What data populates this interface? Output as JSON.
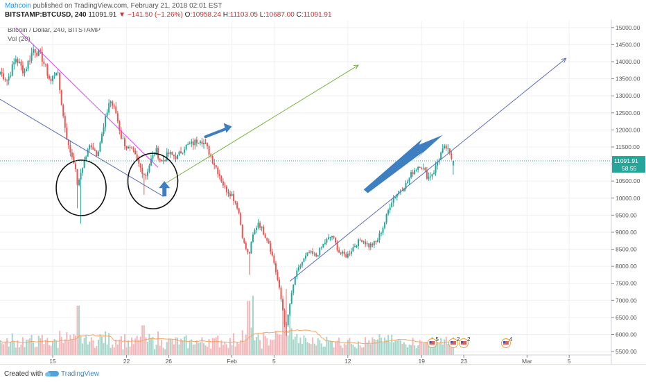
{
  "header": {
    "author": "Mahcoin",
    "published_text": "published on TradingView.com, February 21, 2018 02:01 EST",
    "symbol_line": "BITSTAMP:BTCUSD, 240",
    "last_price": "11091.91",
    "change_text": "▼ −141.50 (−1.26%)",
    "o_label": "O:",
    "o_value": "10958.24",
    "h_label": "H:",
    "h_value": "11103.05",
    "l_label": "L:",
    "l_value": "10687.00",
    "c_label": "C:",
    "c_value": "11091.91"
  },
  "legend": {
    "title": "Bitcoin / Dollar, 240, BITSTAMP",
    "volume": "Vol (20)"
  },
  "price_tag": {
    "price": "11091.91",
    "countdown": "58:55",
    "color": "#26a69a"
  },
  "colors": {
    "up": "#26a69a",
    "down": "#ef5350",
    "vol_up": "#a5d6c9",
    "vol_down": "#f4b6b8",
    "vol_ma": "#f7a35c",
    "grid": "#eef0f4",
    "trend_blue": "#5c6bc0",
    "trend_magenta": "#e040fb",
    "trend_olive": "#7cb342",
    "arrow_blue": "#3e7fc1"
  },
  "events": [
    {
      "date": "Feb 20",
      "label": "5"
    },
    {
      "date": "Feb 22",
      "label": "2"
    },
    {
      "date": "Feb 23",
      "label": "2"
    },
    {
      "date": "Feb 27",
      "label": "4"
    }
  ],
  "footer": {
    "created_with": "Created with",
    "brand": "TradingView"
  },
  "chart_data": {
    "type": "candlestick",
    "title": "Bitcoin / Dollar, 240, BITSTAMP",
    "xlabel": "",
    "ylabel": "",
    "x_tick_labels": [
      "15",
      "22",
      "26",
      "Feb",
      "5",
      "12",
      "19",
      "23",
      "Mar",
      "5"
    ],
    "x_tick_days": [
      15,
      22,
      26,
      32,
      36,
      43,
      50,
      54,
      60,
      64
    ],
    "y_ticks": [
      5500,
      6000,
      6500,
      7000,
      7500,
      8000,
      8500,
      9000,
      9500,
      10000,
      10500,
      11000,
      11500,
      12000,
      12500,
      13000,
      13500,
      14000,
      14500,
      15000
    ],
    "y_tick_labels": [
      "5500.00",
      "6000.00",
      "6500.00",
      "7000.00",
      "7500.00",
      "8000.00",
      "8500.00",
      "9000.00",
      "9500.00",
      "10000.00",
      "10500.00",
      "11000.00",
      "11500.00",
      "12000.00",
      "12500.00",
      "13000.00",
      "13500.00",
      "14000.00",
      "14500.00",
      "15000.00"
    ],
    "ylim": [
      5400,
      15200
    ],
    "x_range_days": [
      10,
      68
    ],
    "bar_interval_hours": 4,
    "series": [
      {
        "name": "BTCUSD",
        "anchors_day_close": [
          [
            10.0,
            13700
          ],
          [
            10.7,
            13450
          ],
          [
            11.5,
            14100
          ],
          [
            12.3,
            13700
          ],
          [
            13.2,
            14400
          ],
          [
            14.0,
            14100
          ],
          [
            14.8,
            13400
          ],
          [
            15.4,
            13800
          ],
          [
            16.0,
            12400
          ],
          [
            16.5,
            11500
          ],
          [
            17.0,
            11100
          ],
          [
            17.4,
            10300
          ],
          [
            17.7,
            10800
          ],
          [
            18.0,
            11100
          ],
          [
            18.6,
            11600
          ],
          [
            19.2,
            11300
          ],
          [
            19.8,
            12000
          ],
          [
            20.4,
            12900
          ],
          [
            21.0,
            12500
          ],
          [
            21.5,
            11800
          ],
          [
            22.0,
            11500
          ],
          [
            22.7,
            11300
          ],
          [
            23.3,
            10900
          ],
          [
            23.8,
            10650
          ],
          [
            24.3,
            11100
          ],
          [
            24.8,
            11400
          ],
          [
            25.3,
            11050
          ],
          [
            26.0,
            11300
          ],
          [
            26.8,
            11200
          ],
          [
            27.5,
            11500
          ],
          [
            28.3,
            11600
          ],
          [
            29.0,
            11750
          ],
          [
            29.6,
            11500
          ],
          [
            30.2,
            11100
          ],
          [
            30.8,
            10700
          ],
          [
            31.3,
            10300
          ],
          [
            32.0,
            10100
          ],
          [
            32.6,
            9700
          ],
          [
            33.1,
            8700
          ],
          [
            33.6,
            8300
          ],
          [
            34.0,
            8900
          ],
          [
            34.5,
            9300
          ],
          [
            35.0,
            9000
          ],
          [
            35.5,
            8700
          ],
          [
            36.0,
            8100
          ],
          [
            36.4,
            7500
          ],
          [
            36.8,
            6800
          ],
          [
            37.1,
            6100
          ],
          [
            37.5,
            6900
          ],
          [
            38.0,
            7700
          ],
          [
            38.6,
            8100
          ],
          [
            39.3,
            8400
          ],
          [
            40.0,
            8300
          ],
          [
            40.8,
            8700
          ],
          [
            41.5,
            8900
          ],
          [
            42.2,
            8400
          ],
          [
            42.9,
            8300
          ],
          [
            43.6,
            8600
          ],
          [
            44.3,
            8800
          ],
          [
            45.0,
            8600
          ],
          [
            45.7,
            8700
          ],
          [
            46.4,
            9200
          ],
          [
            47.1,
            9900
          ],
          [
            47.8,
            10200
          ],
          [
            48.5,
            10400
          ],
          [
            49.2,
            10800
          ],
          [
            49.9,
            11000
          ],
          [
            50.6,
            10600
          ],
          [
            51.2,
            10800
          ],
          [
            51.8,
            11300
          ],
          [
            52.3,
            11500
          ],
          [
            52.7,
            11230
          ],
          [
            53.0,
            11091.91
          ]
        ],
        "last_bar": {
          "open": 10958.24,
          "high": 11103.05,
          "low": 10687.0,
          "close": 11091.91
        }
      }
    ],
    "volume": {
      "name": "Vol (20)",
      "relative_scale": "pane",
      "spikes": [
        {
          "day": 17.4,
          "level": 0.75
        },
        {
          "day": 23.6,
          "level": 0.45
        },
        {
          "day": 33.6,
          "level": 0.82
        },
        {
          "day": 34.0,
          "level": 0.9
        },
        {
          "day": 36.9,
          "level": 0.9
        },
        {
          "day": 37.2,
          "level": 1.0
        },
        {
          "day": 37.5,
          "level": 0.75
        }
      ]
    },
    "trendlines": [
      {
        "color": "trend_magenta",
        "from": [
          11.5,
          15000
        ],
        "to": [
          25.0,
          10900
        ]
      },
      {
        "color": "trend_blue",
        "from": [
          10.0,
          12900
        ],
        "to": [
          25.5,
          10050
        ]
      },
      {
        "color": "trend_olive",
        "from": [
          25.8,
          10450
        ],
        "to": [
          44.0,
          13900
        ]
      },
      {
        "color": "trend_blue",
        "from": [
          37.5,
          7560
        ],
        "to": [
          63.7,
          14100
        ]
      }
    ],
    "annotations": [
      {
        "type": "circle",
        "center": [
          17.7,
          10300
        ],
        "note": "hand-drawn ellipse"
      },
      {
        "type": "circle",
        "center": [
          24.5,
          10500
        ],
        "note": "hand-drawn ellipse"
      },
      {
        "type": "arrow-up",
        "at": [
          25.6,
          10050
        ]
      },
      {
        "type": "arrow",
        "from": [
          29.5,
          11800
        ],
        "to": [
          32.0,
          12100
        ]
      },
      {
        "type": "arrow-wedge",
        "from": [
          44.5,
          10250
        ],
        "to": [
          52.0,
          11850
        ]
      },
      {
        "type": "price-line",
        "value": 11091.91
      }
    ],
    "grid": true,
    "legend": "top-left"
  }
}
